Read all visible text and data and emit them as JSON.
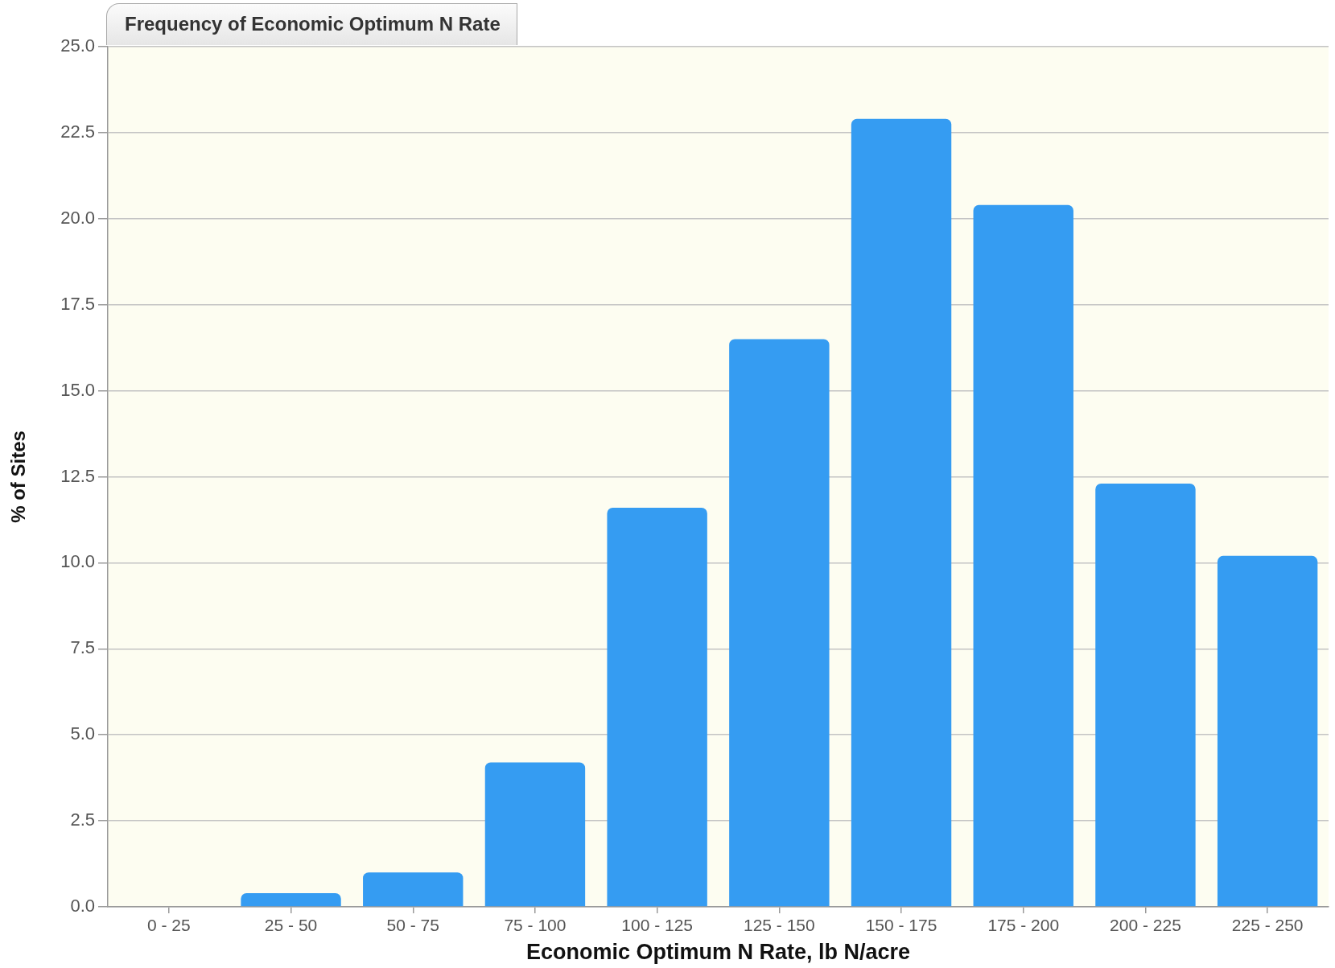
{
  "chart_data": {
    "type": "bar",
    "title": "Frequency of Economic Optimum N Rate",
    "xlabel": "Economic Optimum N Rate, lb N/acre",
    "ylabel": "% of Sites",
    "categories": [
      "0 - 25",
      "25 - 50",
      "50 - 75",
      "75 - 100",
      "100 - 125",
      "125 - 150",
      "150 - 175",
      "175 - 200",
      "200 - 225",
      "225 - 250"
    ],
    "values": [
      0,
      0.4,
      1.0,
      4.2,
      11.6,
      16.5,
      22.9,
      20.4,
      12.3,
      10.2
    ],
    "color": "#359cf2",
    "ylim": [
      0,
      25
    ],
    "yticks": [
      {
        "value": 0,
        "label": "0.0"
      },
      {
        "value": 2.5,
        "label": "2.5"
      },
      {
        "value": 5,
        "label": "5.0"
      },
      {
        "value": 7.5,
        "label": "7.5"
      },
      {
        "value": 10,
        "label": "10.0"
      },
      {
        "value": 12.5,
        "label": "12.5"
      },
      {
        "value": 15,
        "label": "15.0"
      },
      {
        "value": 17.5,
        "label": "17.5"
      },
      {
        "value": 20,
        "label": "20.0"
      },
      {
        "value": 22.5,
        "label": "22.5"
      },
      {
        "value": 25,
        "label": "25.0"
      }
    ],
    "grid": "y"
  }
}
